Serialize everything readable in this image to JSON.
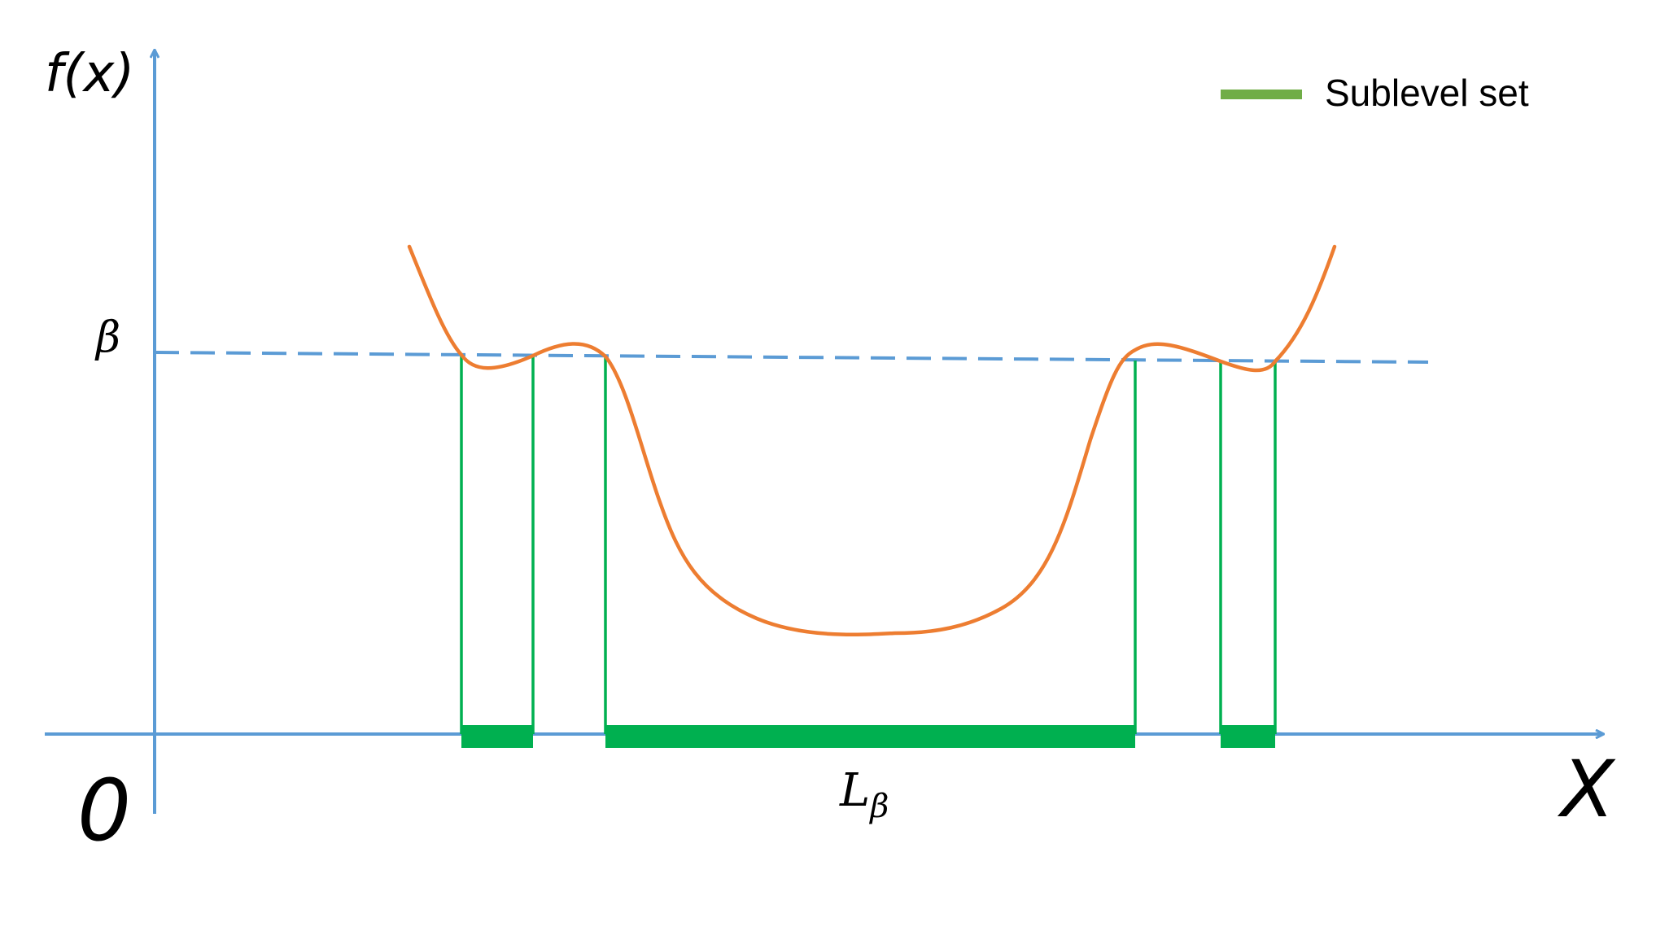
{
  "labels": {
    "y_axis": "f(x)",
    "x_axis": "X",
    "origin": "0",
    "level": "β",
    "set_base": "L",
    "set_sub": "β"
  },
  "legend": {
    "label": "Sublevel set"
  },
  "colors": {
    "axes": "#5b9bd5",
    "curve": "#ed7d31",
    "sublevel": "#00b050",
    "legend_swatch": "#70ad47",
    "text": "#000000"
  }
}
